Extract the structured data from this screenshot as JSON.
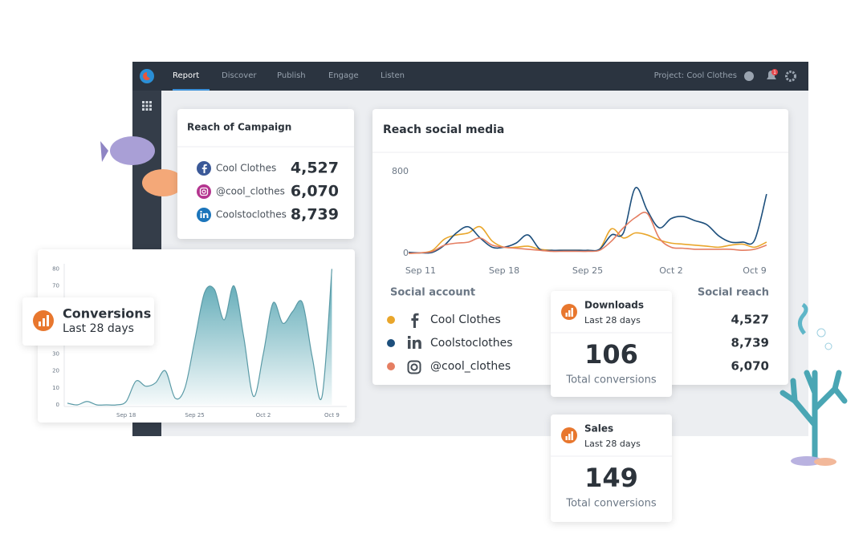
{
  "nav": {
    "tabs": [
      "Report",
      "Discover",
      "Publish",
      "Engage",
      "Listen"
    ],
    "project": "Project: Cool Clothes",
    "badge": 1
  },
  "reach_card": {
    "title": "Reach of Campaign",
    "rows": [
      {
        "name": "Cool Clothes",
        "value": "4,527"
      },
      {
        "name": "@cool_clothes",
        "value": "6,070"
      },
      {
        "name": "Coolstoclothes",
        "value": "8,739"
      }
    ]
  },
  "social_table": {
    "headers": [
      "Social account",
      "Social reach"
    ],
    "reach": [
      "4,527",
      "8,739",
      "6,070"
    ]
  },
  "downloads_card": {
    "title": "Downloads",
    "subtitle": "Last 28 days",
    "value": "106",
    "caption": "Total conversions"
  },
  "sales_card": {
    "title": "Sales",
    "subtitle": "Last 28 days",
    "value": "149",
    "caption": "Total conversions"
  },
  "chart_data": [
    {
      "type": "line",
      "title": "Reach social media",
      "categories": [
        null,
        "Sep 11",
        null,
        null,
        null,
        null,
        null,
        null,
        "Sep 18",
        null,
        null,
        null,
        null,
        null,
        null,
        "Sep 25",
        null,
        null,
        null,
        null,
        null,
        null,
        "Oct 2",
        null,
        null,
        null,
        null,
        null,
        null,
        "Oct 9",
        null
      ],
      "series": [
        {
          "name": "Cool Clothes",
          "color": "#e9a62b",
          "values": [
            0,
            5,
            30,
            140,
            180,
            200,
            260,
            120,
            60,
            60,
            70,
            40,
            30,
            30,
            30,
            30,
            40,
            240,
            150,
            200,
            180,
            130,
            100,
            90,
            80,
            70,
            60,
            80,
            90,
            60,
            110
          ]
        },
        {
          "name": "Coolstoclothes",
          "color": "#1d4f7c",
          "values": [
            10,
            5,
            10,
            80,
            200,
            260,
            150,
            60,
            60,
            100,
            180,
            40,
            30,
            30,
            30,
            30,
            40,
            180,
            200,
            640,
            420,
            250,
            340,
            360,
            320,
            280,
            170,
            110,
            110,
            130,
            580
          ]
        },
        {
          "name": "@cool_clothes",
          "color": "#e57e62",
          "values": [
            0,
            5,
            20,
            80,
            100,
            110,
            150,
            80,
            60,
            50,
            40,
            30,
            20,
            20,
            20,
            20,
            30,
            120,
            250,
            350,
            390,
            150,
            60,
            50,
            40,
            40,
            40,
            40,
            30,
            40,
            80
          ]
        }
      ],
      "ylim": [
        0,
        800
      ],
      "yticks": [
        0,
        800
      ],
      "grid": false
    },
    {
      "type": "area",
      "title": "Conversions",
      "subtitle": "Last 28 days",
      "color": "#4a9fad",
      "categories": [
        null,
        null,
        null,
        null,
        null,
        null,
        "Sep 18",
        null,
        null,
        null,
        null,
        null,
        null,
        "Sep 25",
        null,
        null,
        null,
        null,
        null,
        null,
        "Oct 2",
        null,
        null,
        null,
        null,
        null,
        null,
        "Oct 9"
      ],
      "values": [
        1,
        0,
        2,
        0,
        0,
        0,
        2,
        14,
        11,
        13,
        20,
        4,
        10,
        38,
        66,
        68,
        50,
        70,
        40,
        5,
        30,
        60,
        48,
        55,
        60,
        28,
        5,
        80
      ],
      "ylim": [
        0,
        80
      ],
      "yticks": [
        0,
        10,
        20,
        30,
        40,
        50,
        60,
        70,
        80
      ],
      "grid": false
    }
  ]
}
